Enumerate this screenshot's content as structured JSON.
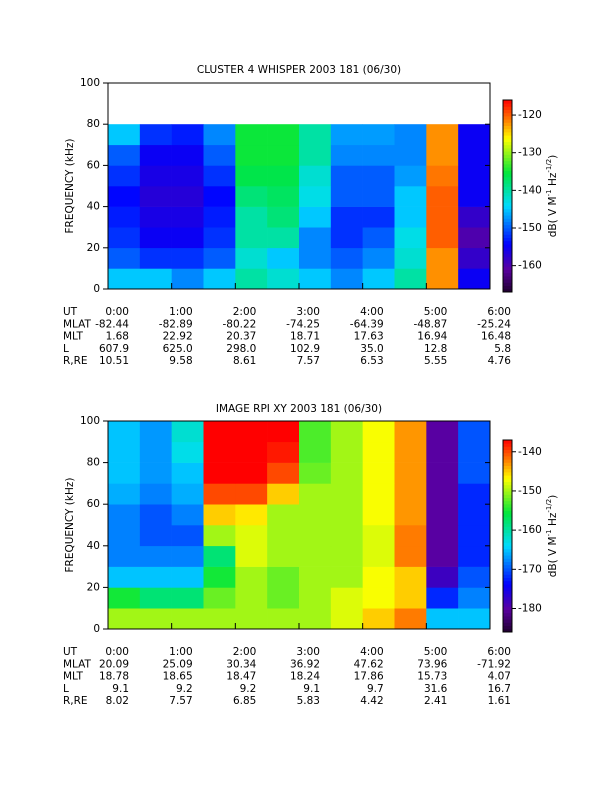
{
  "chart_data": [
    {
      "type": "heatmap",
      "title": "CLUSTER 4 WHISPER 2003 181 (06/30)",
      "ylabel": "FREQUENCY (kHz)",
      "xlim": [
        0,
        6
      ],
      "ylim": [
        0,
        100
      ],
      "xticks": [
        {
          "value": 0,
          "label": "0:00"
        },
        {
          "value": 1,
          "label": "1:00"
        },
        {
          "value": 2,
          "label": "2:00"
        },
        {
          "value": 3,
          "label": "3:00"
        },
        {
          "value": 4,
          "label": "4:00"
        },
        {
          "value": 5,
          "label": "5:00"
        },
        {
          "value": 6,
          "label": "6:00"
        }
      ],
      "yticks": [
        0,
        20,
        40,
        60,
        80,
        100
      ],
      "xbins": [
        0,
        0.5,
        1,
        1.5,
        2,
        2.5,
        3,
        3.5,
        4,
        4.5,
        5,
        5.5,
        6
      ],
      "ybins": [
        0,
        10,
        20,
        30,
        40,
        50,
        60,
        70,
        80
      ],
      "z": [
        [
          -145,
          -145,
          -148,
          -145,
          -140,
          -142,
          -145,
          -148,
          -145,
          -140,
          -122,
          -155
        ],
        [
          -150,
          -152,
          -152,
          -150,
          -142,
          -145,
          -148,
          -150,
          -148,
          -142,
          -122,
          -158
        ],
        [
          -152,
          -155,
          -155,
          -152,
          -140,
          -140,
          -148,
          -152,
          -150,
          -143,
          -120,
          -160
        ],
        [
          -153,
          -156,
          -156,
          -153,
          -140,
          -138,
          -145,
          -152,
          -152,
          -145,
          -120,
          -158
        ],
        [
          -154,
          -157,
          -157,
          -154,
          -138,
          -137,
          -143,
          -150,
          -150,
          -145,
          -120,
          -155
        ],
        [
          -152,
          -156,
          -156,
          -152,
          -136,
          -136,
          -142,
          -150,
          -150,
          -147,
          -121,
          -155
        ],
        [
          -150,
          -155,
          -155,
          -150,
          -135,
          -135,
          -140,
          -148,
          -148,
          -148,
          -122,
          -155
        ],
        [
          -145,
          -152,
          -153,
          -148,
          -135,
          -135,
          -140,
          -147,
          -147,
          -148,
          -122,
          -155
        ]
      ],
      "zlim": [
        -167,
        -116
      ],
      "zticks": [
        -120,
        -130,
        -140,
        -150,
        -160
      ],
      "colorbar_label": [
        "dB( V M",
        "-1",
        " Hz",
        "-1/2",
        ")"
      ],
      "ephemeris": {
        "row_labels": [
          "UT",
          "MLAT",
          "MLT",
          "L",
          "R,RE"
        ],
        "rows": [
          [
            "-82.44",
            "-82.89",
            "-80.22",
            "-74.25",
            "-64.39",
            "-48.87",
            "-25.24"
          ],
          [
            "1.68",
            "22.92",
            "20.37",
            "18.71",
            "17.63",
            "16.94",
            "16.48"
          ],
          [
            "607.9",
            "625.0",
            "298.0",
            "102.9",
            "35.0",
            "12.8",
            "5.8"
          ],
          [
            "10.51",
            "9.58",
            "8.61",
            "7.57",
            "6.53",
            "5.55",
            "4.76"
          ]
        ]
      }
    },
    {
      "type": "heatmap",
      "title": "IMAGE RPI XY 2003 181 (06/30)",
      "ylabel": "FREQUENCY (kHz)",
      "xlim": [
        0,
        6
      ],
      "ylim": [
        0,
        100
      ],
      "xticks": [
        {
          "value": 0,
          "label": "0:00"
        },
        {
          "value": 1,
          "label": "1:00"
        },
        {
          "value": 2,
          "label": "2:00"
        },
        {
          "value": 3,
          "label": "3:00"
        },
        {
          "value": 4,
          "label": "4:00"
        },
        {
          "value": 5,
          "label": "5:00"
        },
        {
          "value": 6,
          "label": "6:00"
        }
      ],
      "yticks": [
        0,
        20,
        40,
        60,
        80,
        100
      ],
      "xbins": [
        0,
        0.5,
        1,
        1.5,
        2,
        2.5,
        3,
        3.5,
        4,
        4.5,
        5,
        5.5,
        6
      ],
      "ybins": [
        0,
        10,
        20,
        30,
        40,
        50,
        60,
        70,
        80,
        90,
        100
      ],
      "z": [
        [
          -150,
          -150,
          -150,
          -150,
          -150,
          -150,
          -150,
          -148,
          -145,
          -142,
          -165,
          -165
        ],
        [
          -155,
          -158,
          -158,
          -152,
          -150,
          -152,
          -150,
          -148,
          -147,
          -145,
          -172,
          -168
        ],
        [
          -165,
          -165,
          -165,
          -155,
          -150,
          -152,
          -150,
          -150,
          -147,
          -145,
          -178,
          -170
        ],
        [
          -168,
          -168,
          -168,
          -158,
          -148,
          -150,
          -150,
          -150,
          -148,
          -142,
          -180,
          -172
        ],
        [
          -168,
          -170,
          -170,
          -150,
          -148,
          -150,
          -150,
          -150,
          -148,
          -142,
          -180,
          -172
        ],
        [
          -168,
          -170,
          -168,
          -145,
          -146,
          -150,
          -150,
          -150,
          -147,
          -143,
          -180,
          -172
        ],
        [
          -166,
          -168,
          -166,
          -140,
          -140,
          -145,
          -150,
          -150,
          -147,
          -143,
          -180,
          -172
        ],
        [
          -165,
          -167,
          -165,
          -137,
          -137,
          -140,
          -152,
          -150,
          -147,
          -143,
          -180,
          -170
        ],
        [
          -165,
          -167,
          -163,
          -136,
          -136,
          -138,
          -153,
          -150,
          -147,
          -143,
          -180,
          -170
        ],
        [
          -165,
          -167,
          -162,
          -135,
          -135,
          -136,
          -153,
          -150,
          -147,
          -143,
          -180,
          -170
        ]
      ],
      "zlim": [
        -186,
        -137
      ],
      "zticks": [
        -140,
        -150,
        -160,
        -170,
        -180
      ],
      "colorbar_label": [
        "dB( V M",
        "-1",
        " Hz",
        "-1/2",
        ")"
      ],
      "ephemeris": {
        "row_labels": [
          "UT",
          "MLAT",
          "MLT",
          "L",
          "R,RE"
        ],
        "rows": [
          [
            "20.09",
            "25.09",
            "30.34",
            "36.92",
            "47.62",
            "73.96",
            "-71.92"
          ],
          [
            "18.78",
            "18.65",
            "18.47",
            "18.24",
            "17.86",
            "15.73",
            "4.07"
          ],
          [
            "9.1",
            "9.2",
            "9.2",
            "9.1",
            "9.7",
            "31.6",
            "16.7"
          ],
          [
            "8.02",
            "7.57",
            "6.85",
            "5.83",
            "4.42",
            "2.41",
            "1.61"
          ]
        ]
      }
    }
  ]
}
